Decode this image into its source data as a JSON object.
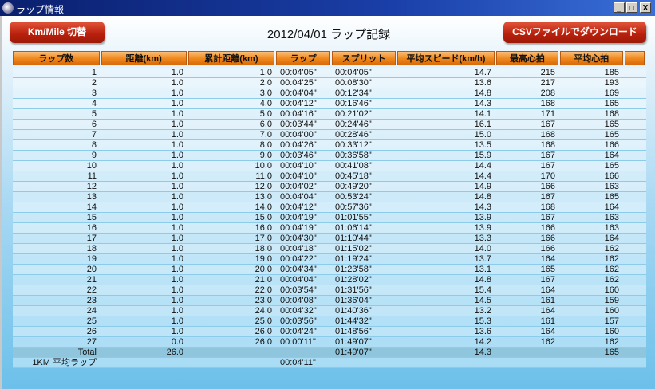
{
  "window": {
    "title": "ラップ情報",
    "controls": [
      "_",
      "□",
      "X"
    ]
  },
  "toolbar": {
    "unit_toggle_label": "Km/Mile 切替",
    "csv_download_label": "CSVファイルでダウンロード"
  },
  "page_title": "2012/04/01 ラップ記録",
  "colors": {
    "header_orange": "#f08a1e",
    "button_red": "#b8200c",
    "titlebar_blue": "#0a1f6e",
    "background_blue": "#6cc0ea"
  },
  "columns": [
    "ラップ数",
    "距離(km)",
    "累計距離(km)",
    "ラップ",
    "スプリット",
    "平均スピード(km/h)",
    "最高心拍",
    "平均心拍",
    ""
  ],
  "rows": [
    [
      "1",
      "1.0",
      "1.0",
      "00:04'05\"",
      "00:04'05\"",
      "14.7",
      "215",
      "185"
    ],
    [
      "2",
      "1.0",
      "2.0",
      "00:04'25\"",
      "00:08'30\"",
      "13.6",
      "217",
      "193"
    ],
    [
      "3",
      "1.0",
      "3.0",
      "00:04'04\"",
      "00:12'34\"",
      "14.8",
      "208",
      "169"
    ],
    [
      "4",
      "1.0",
      "4.0",
      "00:04'12\"",
      "00:16'46\"",
      "14.3",
      "168",
      "165"
    ],
    [
      "5",
      "1.0",
      "5.0",
      "00:04'16\"",
      "00:21'02\"",
      "14.1",
      "171",
      "168"
    ],
    [
      "6",
      "1.0",
      "6.0",
      "00:03'44\"",
      "00:24'46\"",
      "16.1",
      "167",
      "165"
    ],
    [
      "7",
      "1.0",
      "7.0",
      "00:04'00\"",
      "00:28'46\"",
      "15.0",
      "168",
      "165"
    ],
    [
      "8",
      "1.0",
      "8.0",
      "00:04'26\"",
      "00:33'12\"",
      "13.5",
      "168",
      "166"
    ],
    [
      "9",
      "1.0",
      "9.0",
      "00:03'46\"",
      "00:36'58\"",
      "15.9",
      "167",
      "164"
    ],
    [
      "10",
      "1.0",
      "10.0",
      "00:04'10\"",
      "00:41'08\"",
      "14.4",
      "167",
      "165"
    ],
    [
      "11",
      "1.0",
      "11.0",
      "00:04'10\"",
      "00:45'18\"",
      "14.4",
      "170",
      "166"
    ],
    [
      "12",
      "1.0",
      "12.0",
      "00:04'02\"",
      "00:49'20\"",
      "14.9",
      "166",
      "163"
    ],
    [
      "13",
      "1.0",
      "13.0",
      "00:04'04\"",
      "00:53'24\"",
      "14.8",
      "167",
      "165"
    ],
    [
      "14",
      "1.0",
      "14.0",
      "00:04'12\"",
      "00:57'36\"",
      "14.3",
      "168",
      "164"
    ],
    [
      "15",
      "1.0",
      "15.0",
      "00:04'19\"",
      "01:01'55\"",
      "13.9",
      "167",
      "163"
    ],
    [
      "16",
      "1.0",
      "16.0",
      "00:04'19\"",
      "01:06'14\"",
      "13.9",
      "166",
      "163"
    ],
    [
      "17",
      "1.0",
      "17.0",
      "00:04'30\"",
      "01:10'44\"",
      "13.3",
      "166",
      "164"
    ],
    [
      "18",
      "1.0",
      "18.0",
      "00:04'18\"",
      "01:15'02\"",
      "14.0",
      "166",
      "162"
    ],
    [
      "19",
      "1.0",
      "19.0",
      "00:04'22\"",
      "01:19'24\"",
      "13.7",
      "164",
      "162"
    ],
    [
      "20",
      "1.0",
      "20.0",
      "00:04'34\"",
      "01:23'58\"",
      "13.1",
      "165",
      "162"
    ],
    [
      "21",
      "1.0",
      "21.0",
      "00:04'04\"",
      "01:28'02\"",
      "14.8",
      "167",
      "162"
    ],
    [
      "22",
      "1.0",
      "22.0",
      "00:03'54\"",
      "01:31'56\"",
      "15.4",
      "164",
      "160"
    ],
    [
      "23",
      "1.0",
      "23.0",
      "00:04'08\"",
      "01:36'04\"",
      "14.5",
      "161",
      "159"
    ],
    [
      "24",
      "1.0",
      "24.0",
      "00:04'32\"",
      "01:40'36\"",
      "13.2",
      "164",
      "160"
    ],
    [
      "25",
      "1.0",
      "25.0",
      "00:03'56\"",
      "01:44'32\"",
      "15.3",
      "161",
      "157"
    ],
    [
      "26",
      "1.0",
      "26.0",
      "00:04'24\"",
      "01:48'56\"",
      "13.6",
      "164",
      "160"
    ],
    [
      "27",
      "0.0",
      "26.0",
      "00:00'11\"",
      "01:49'07\"",
      "14.2",
      "162",
      "162"
    ]
  ],
  "total_row": [
    "Total",
    "26.0",
    "",
    "",
    "01:49'07\"",
    "14.3",
    "",
    "165"
  ],
  "average_row": [
    "1KM 平均ラップ",
    "",
    "",
    "00:04'11\"",
    "",
    "",
    "",
    ""
  ]
}
